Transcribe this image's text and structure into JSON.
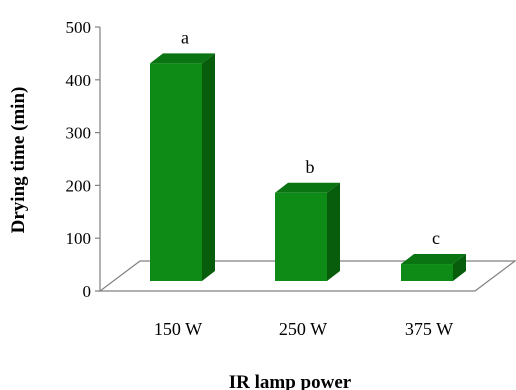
{
  "chart_data": {
    "type": "bar",
    "title": "",
    "xlabel": "IR lamp power",
    "ylabel": "Drying time (min)",
    "categories": [
      "150 W",
      "250 W",
      "375 W"
    ],
    "values": [
      450,
      205,
      70
    ],
    "data_labels": [
      "a",
      "b",
      "c"
    ],
    "ylim": [
      0,
      500
    ],
    "yticks": [
      "0",
      "100",
      "200",
      "300",
      "400",
      "500"
    ],
    "grid": false,
    "legend": "none",
    "style": "3d-column",
    "colors": {
      "bar_front": "#0e8a17",
      "bar_side": "#075d0c",
      "bar_top": "#0a7412",
      "floor": "#ffffff",
      "axis": "#808080"
    }
  }
}
